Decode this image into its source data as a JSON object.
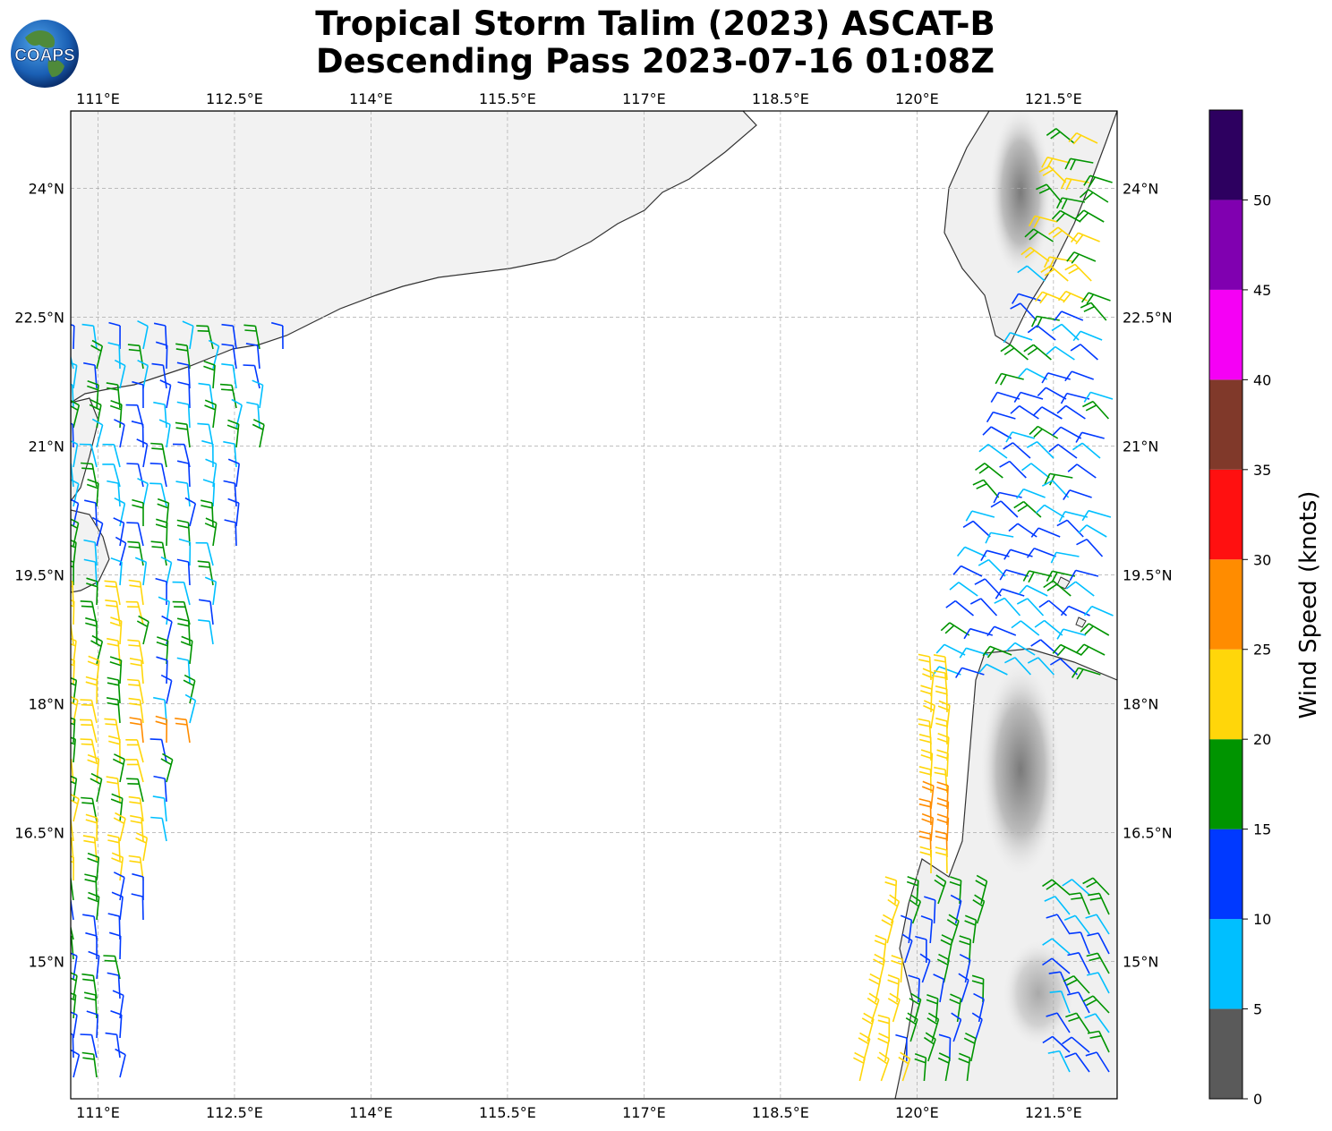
{
  "title": {
    "line1": "Tropical Storm Talim (2023) ASCAT-B",
    "line2": "Descending Pass 2023-07-16 01:08Z"
  },
  "logo": {
    "text": "COAPS",
    "icon": "coaps-globe-logo"
  },
  "map": {
    "lon_range": [
      110.7,
      122.2
    ],
    "lat_range": [
      13.4,
      24.9
    ],
    "lon_ticks": [
      "111°E",
      "112.5°E",
      "114°E",
      "115.5°E",
      "117°E",
      "118.5°E",
      "120°E",
      "121.5°E"
    ],
    "lon_tick_values": [
      111,
      112.5,
      114,
      115.5,
      117,
      118.5,
      120,
      121.5
    ],
    "lat_ticks": [
      "24°N",
      "22.5°N",
      "21°N",
      "19.5°N",
      "18°N",
      "16.5°N",
      "15°N"
    ],
    "lat_tick_values": [
      24,
      22.5,
      21,
      19.5,
      18,
      16.5,
      15
    ],
    "gridlines": true,
    "land_color": "#f4f4f4",
    "coast_color": "#333333"
  },
  "colorbar": {
    "label": "Wind Speed (knots)",
    "ticks": [
      "0",
      "5",
      "10",
      "15",
      "20",
      "25",
      "30",
      "35",
      "40",
      "45",
      "50"
    ],
    "bins": [
      {
        "min": 0,
        "max": 5,
        "color": "#5a5a5a"
      },
      {
        "min": 5,
        "max": 10,
        "color": "#00bfff"
      },
      {
        "min": 10,
        "max": 15,
        "color": "#0039ff"
      },
      {
        "min": 15,
        "max": 20,
        "color": "#009400"
      },
      {
        "min": 20,
        "max": 25,
        "color": "#ffd60a"
      },
      {
        "min": 25,
        "max": 30,
        "color": "#ff8c00"
      },
      {
        "min": 30,
        "max": 35,
        "color": "#ff1010"
      },
      {
        "min": 35,
        "max": 40,
        "color": "#80392a"
      },
      {
        "min": 40,
        "max": 45,
        "color": "#f500f5"
      },
      {
        "min": 45,
        "max": 50,
        "color": "#8000b0"
      },
      {
        "min": 50,
        "max": 55,
        "color": "#2d0060"
      }
    ]
  }
}
